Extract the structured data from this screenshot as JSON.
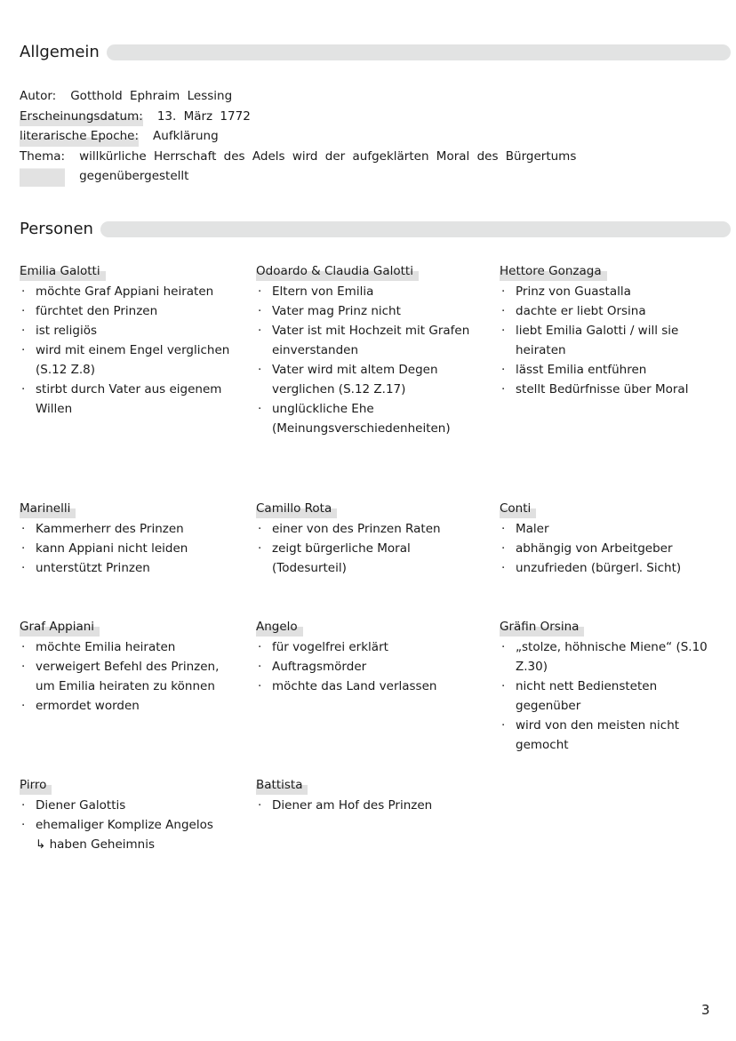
{
  "sections": {
    "general": "Allgemein",
    "persons": "Personen"
  },
  "general": {
    "author_label": "Autor:",
    "author": "Gotthold Ephraim Lessing",
    "date_label": "Erscheinungsdatum:",
    "date": "13. März 1772",
    "epoch_label": "literarische Epoche:",
    "epoch": "Aufklärung",
    "theme_label": "Thema:",
    "theme": "willkürliche Herrschaft des Adels wird der aufgeklärten Moral des Bürgertums gegenübergestellt"
  },
  "persons": [
    {
      "name": "Emilia Galotti",
      "items": [
        {
          "t": "möchte Graf Appiani heiraten"
        },
        {
          "t": "fürchtet den Prinzen"
        },
        {
          "t": "ist religiös"
        },
        {
          "t": "wird mit einem Engel verglichen (S.12 Z.8)"
        },
        {
          "t": "stirbt durch Vater aus eigenem Willen"
        }
      ]
    },
    {
      "name": "Odoardo & Claudia Galotti",
      "items": [
        {
          "t": "Eltern von Emilia"
        },
        {
          "t": "Vater mag Prinz nicht"
        },
        {
          "t": "Vater ist mit Hochzeit mit Grafen einverstanden"
        },
        {
          "t": "Vater wird mit altem Degen verglichen (S.12 Z.17)"
        },
        {
          "t": "unglückliche Ehe (Meinungsverschiedenheiten)"
        }
      ]
    },
    {
      "name": "Hettore Gonzaga",
      "items": [
        {
          "t": "Prinz von Guastalla"
        },
        {
          "t": "dachte er liebt Orsina"
        },
        {
          "t": "liebt Emilia Galotti / will sie heiraten"
        },
        {
          "t": "lässt Emilia entführen"
        },
        {
          "t": "stellt Bedürfnisse über Moral"
        }
      ]
    },
    {
      "name": "Marinelli",
      "items": [
        {
          "t": "Kammerherr des Prinzen"
        },
        {
          "t": "kann Appiani nicht leiden"
        },
        {
          "t": "unterstützt Prinzen"
        }
      ]
    },
    {
      "name": "Camillo Rota",
      "items": [
        {
          "t": "einer von des Prinzen Raten"
        },
        {
          "t": "zeigt bürgerliche Moral (Todesurteil)"
        }
      ]
    },
    {
      "name": "Conti",
      "items": [
        {
          "t": "Maler"
        },
        {
          "t": "abhängig von Arbeitgeber"
        },
        {
          "t": "unzufrieden (bürgerl. Sicht)"
        }
      ]
    },
    {
      "name": "Graf Appiani",
      "items": [
        {
          "t": "möchte Emilia heiraten"
        },
        {
          "t": "verweigert Befehl des Prinzen, um Emilia heiraten zu können"
        },
        {
          "t": "ermordet worden"
        }
      ]
    },
    {
      "name": "Angelo",
      "items": [
        {
          "t": "für vogelfrei erklärt"
        },
        {
          "t": "Auftragsmörder"
        },
        {
          "t": "möchte das Land verlassen"
        }
      ]
    },
    {
      "name": "Gräfin Orsina",
      "items": [
        {
          "t": "„stolze, höhnische Miene“ (S.10 Z.30)"
        },
        {
          "t": "nicht nett Bediensteten gegenüber"
        },
        {
          "t": "wird von den meisten nicht gemocht"
        }
      ]
    },
    {
      "name": "Pirro",
      "items": [
        {
          "t": "Diener Galottis"
        },
        {
          "t": "ehemaliger Komplize Angelos"
        },
        {
          "t": "↳ haben Geheimnis",
          "sub": true
        }
      ]
    },
    {
      "name": "Battista",
      "items": [
        {
          "t": "Diener am Hof des Prinzen"
        }
      ]
    }
  ],
  "page_number": "3"
}
